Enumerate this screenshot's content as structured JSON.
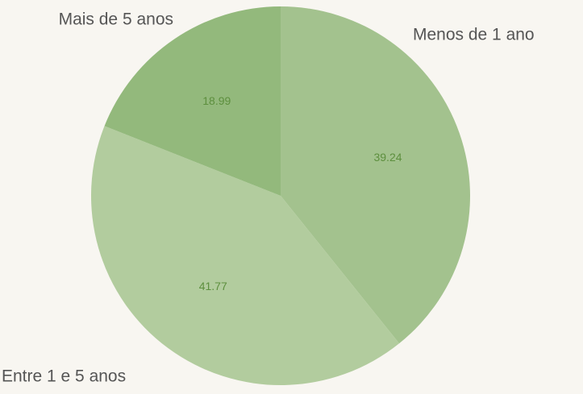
{
  "chart_data": {
    "type": "pie",
    "categories": [
      "Menos de 1 ano",
      "Entre 1 e 5 anos",
      "Mais de 5 anos"
    ],
    "values": [
      39.24,
      41.77,
      18.99
    ],
    "colors": [
      "#a3c28e",
      "#b2cc9e",
      "#93b97c"
    ]
  }
}
